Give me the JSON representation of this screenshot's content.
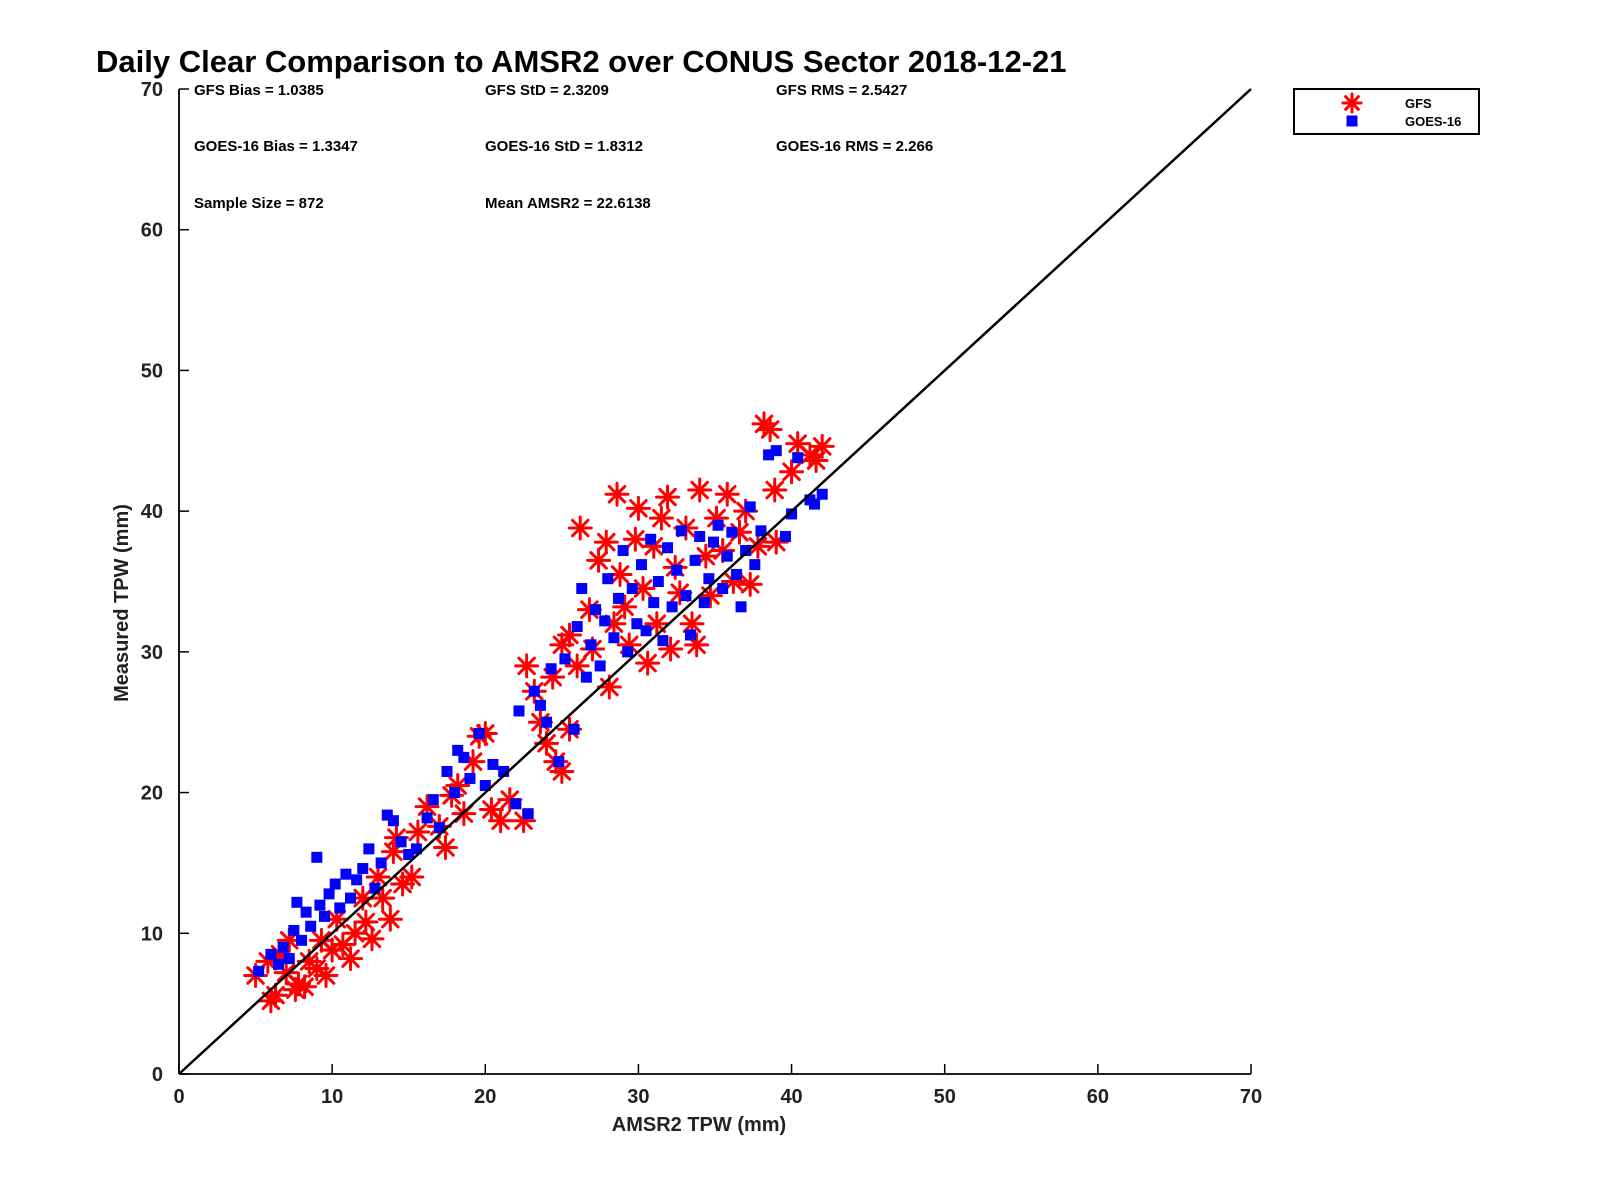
{
  "chart_data": {
    "type": "scatter",
    "title": "Daily Clear Comparison to AMSR2 over CONUS Sector 2018-12-21",
    "xlabel": "AMSR2 TPW (mm)",
    "ylabel": "Measured TPW (mm)",
    "xlim": [
      0,
      70
    ],
    "ylim": [
      0,
      70
    ],
    "xticks": [
      "0",
      "10",
      "20",
      "30",
      "40",
      "50",
      "60",
      "70"
    ],
    "yticks": [
      "0",
      "10",
      "20",
      "30",
      "40",
      "50",
      "60",
      "70"
    ],
    "grid": false,
    "legend_position": "top-right outside",
    "reference_line": "1:1",
    "stats": {
      "gfs_bias": "GFS Bias = 1.0385",
      "gfs_std": "GFS StD = 2.3209",
      "gfs_rms": "GFS RMS = 2.5427",
      "goes_bias": "GOES-16 Bias = 1.3347",
      "goes_std": "GOES-16 StD = 1.8312",
      "goes_rms": "GOES-16 RMS = 2.266",
      "sample_size": "Sample Size = 872",
      "mean_amsr2": "Mean AMSR2 = 22.6138"
    },
    "series": [
      {
        "name": "GFS",
        "marker": "asterisk",
        "color": "#ff0000",
        "points": [
          [
            5,
            7
          ],
          [
            5.8,
            8
          ],
          [
            6,
            5.2
          ],
          [
            6.3,
            5.6
          ],
          [
            6.6,
            8.5
          ],
          [
            7,
            7.2
          ],
          [
            7.2,
            9.5
          ],
          [
            7.6,
            6
          ],
          [
            7.8,
            6.4
          ],
          [
            8.2,
            6.2
          ],
          [
            8.5,
            8
          ],
          [
            9,
            7.5
          ],
          [
            9.3,
            9.5
          ],
          [
            9.6,
            7
          ],
          [
            10,
            8.8
          ],
          [
            10.3,
            11
          ],
          [
            10.7,
            9.2
          ],
          [
            11.2,
            8.2
          ],
          [
            11.5,
            10
          ],
          [
            12,
            12.5
          ],
          [
            12.2,
            10.8
          ],
          [
            12.6,
            9.6
          ],
          [
            13,
            14
          ],
          [
            13.3,
            12.5
          ],
          [
            13.8,
            11
          ],
          [
            14,
            15.8
          ],
          [
            14.2,
            16.8
          ],
          [
            14.6,
            13.5
          ],
          [
            15.2,
            14
          ],
          [
            15.6,
            17.2
          ],
          [
            16.2,
            19
          ],
          [
            17,
            17.6
          ],
          [
            17.4,
            16.1
          ],
          [
            17.8,
            19.8
          ],
          [
            18.2,
            20.5
          ],
          [
            18.6,
            18.5
          ],
          [
            19.2,
            22.2
          ],
          [
            19.6,
            24
          ],
          [
            20,
            24.2
          ],
          [
            20.4,
            18.8
          ],
          [
            21,
            18
          ],
          [
            21.6,
            19.5
          ],
          [
            22.5,
            18
          ],
          [
            22.7,
            29
          ],
          [
            23.2,
            27.2
          ],
          [
            23.6,
            25
          ],
          [
            24,
            23.5
          ],
          [
            24.4,
            28.2
          ],
          [
            24.6,
            22.2
          ],
          [
            25,
            21.5
          ],
          [
            25,
            30.5
          ],
          [
            25.5,
            31.2
          ],
          [
            25.5,
            24.5
          ],
          [
            26,
            29
          ],
          [
            26.2,
            38.8
          ],
          [
            26.8,
            33
          ],
          [
            27,
            30.2
          ],
          [
            27.4,
            36.5
          ],
          [
            27.9,
            37.8
          ],
          [
            28.1,
            27.5
          ],
          [
            28.4,
            32
          ],
          [
            28.6,
            41.2
          ],
          [
            28.8,
            35.5
          ],
          [
            29.1,
            33.2
          ],
          [
            29.4,
            30.5
          ],
          [
            29.8,
            38
          ],
          [
            30,
            40.2
          ],
          [
            30.3,
            34.5
          ],
          [
            30.6,
            29.2
          ],
          [
            31,
            37.5
          ],
          [
            31.2,
            32
          ],
          [
            31.5,
            39.5
          ],
          [
            31.9,
            41
          ],
          [
            32.1,
            30.2
          ],
          [
            32.4,
            36
          ],
          [
            32.7,
            34.2
          ],
          [
            33.1,
            38.8
          ],
          [
            33.5,
            32
          ],
          [
            33.8,
            30.5
          ],
          [
            34,
            41.5
          ],
          [
            34.4,
            36.8
          ],
          [
            34.7,
            34
          ],
          [
            35.1,
            39.5
          ],
          [
            35.5,
            37.2
          ],
          [
            35.8,
            41.2
          ],
          [
            36.2,
            35
          ],
          [
            36.6,
            38.5
          ],
          [
            37,
            40
          ],
          [
            37.3,
            34.8
          ],
          [
            37.8,
            37.5
          ],
          [
            38.2,
            46.2
          ],
          [
            38.6,
            45.8
          ],
          [
            38.9,
            41.5
          ],
          [
            39,
            37.8
          ],
          [
            40,
            42.8
          ],
          [
            40.4,
            44.8
          ],
          [
            41.2,
            44
          ],
          [
            41.6,
            43.6
          ],
          [
            42,
            44.6
          ]
        ]
      },
      {
        "name": "GOES-16",
        "marker": "square",
        "color": "#0000ff",
        "points": [
          [
            5.2,
            7.3
          ],
          [
            6,
            8.5
          ],
          [
            6.5,
            7.8
          ],
          [
            6.8,
            9
          ],
          [
            7.2,
            8.2
          ],
          [
            7.5,
            10.2
          ],
          [
            7.7,
            12.2
          ],
          [
            8,
            9.5
          ],
          [
            8.3,
            11.5
          ],
          [
            8.6,
            10.5
          ],
          [
            9,
            15.4
          ],
          [
            9.2,
            12
          ],
          [
            9.5,
            11.2
          ],
          [
            9.8,
            12.8
          ],
          [
            10.2,
            13.5
          ],
          [
            10.5,
            11.8
          ],
          [
            10.9,
            14.2
          ],
          [
            11.2,
            12.5
          ],
          [
            11.6,
            13.8
          ],
          [
            12,
            14.6
          ],
          [
            12.4,
            16
          ],
          [
            12.8,
            13.2
          ],
          [
            13.2,
            15
          ],
          [
            13.6,
            18.4
          ],
          [
            14,
            18
          ],
          [
            14.5,
            16.5
          ],
          [
            15,
            15.6
          ],
          [
            15.5,
            16
          ],
          [
            16.2,
            18.2
          ],
          [
            16.6,
            19.5
          ],
          [
            17,
            17.5
          ],
          [
            17.5,
            21.5
          ],
          [
            18,
            20
          ],
          [
            18.2,
            23
          ],
          [
            18.6,
            22.5
          ],
          [
            19,
            21
          ],
          [
            19.6,
            24.2
          ],
          [
            20,
            20.5
          ],
          [
            20.5,
            22
          ],
          [
            21.2,
            21.5
          ],
          [
            22,
            19.2
          ],
          [
            22.2,
            25.8
          ],
          [
            22.8,
            18.5
          ],
          [
            23.2,
            27.2
          ],
          [
            23.6,
            26.2
          ],
          [
            24,
            25
          ],
          [
            24.3,
            28.8
          ],
          [
            24.8,
            22.2
          ],
          [
            25.2,
            29.5
          ],
          [
            25.8,
            24.5
          ],
          [
            26,
            31.8
          ],
          [
            26.3,
            34.5
          ],
          [
            26.6,
            28.2
          ],
          [
            26.9,
            30.5
          ],
          [
            27.2,
            33
          ],
          [
            27.5,
            29
          ],
          [
            27.8,
            32.2
          ],
          [
            28,
            35.2
          ],
          [
            28.4,
            31
          ],
          [
            28.7,
            33.8
          ],
          [
            29,
            37.2
          ],
          [
            29.3,
            30
          ],
          [
            29.6,
            34.5
          ],
          [
            29.9,
            32
          ],
          [
            30.2,
            36.2
          ],
          [
            30.5,
            31.5
          ],
          [
            30.8,
            38
          ],
          [
            31,
            33.5
          ],
          [
            31.3,
            35
          ],
          [
            31.6,
            30.8
          ],
          [
            31.9,
            37.4
          ],
          [
            32.2,
            33.2
          ],
          [
            32.5,
            35.8
          ],
          [
            32.8,
            38.6
          ],
          [
            33.1,
            34
          ],
          [
            33.4,
            31.2
          ],
          [
            33.7,
            36.5
          ],
          [
            34,
            38.2
          ],
          [
            34.3,
            33.5
          ],
          [
            34.6,
            35.2
          ],
          [
            34.9,
            37.8
          ],
          [
            35.2,
            39
          ],
          [
            35.5,
            34.5
          ],
          [
            35.8,
            36.8
          ],
          [
            36.1,
            38.5
          ],
          [
            36.4,
            35.5
          ],
          [
            36.7,
            33.2
          ],
          [
            37,
            37.2
          ],
          [
            37.3,
            40.3
          ],
          [
            37.6,
            36.2
          ],
          [
            38,
            38.6
          ],
          [
            38.5,
            44
          ],
          [
            39,
            44.3
          ],
          [
            39.6,
            38.2
          ],
          [
            40,
            39.8
          ],
          [
            40.4,
            43.8
          ],
          [
            41.2,
            40.8
          ],
          [
            41.5,
            40.5
          ],
          [
            42,
            41.2
          ]
        ]
      }
    ]
  }
}
